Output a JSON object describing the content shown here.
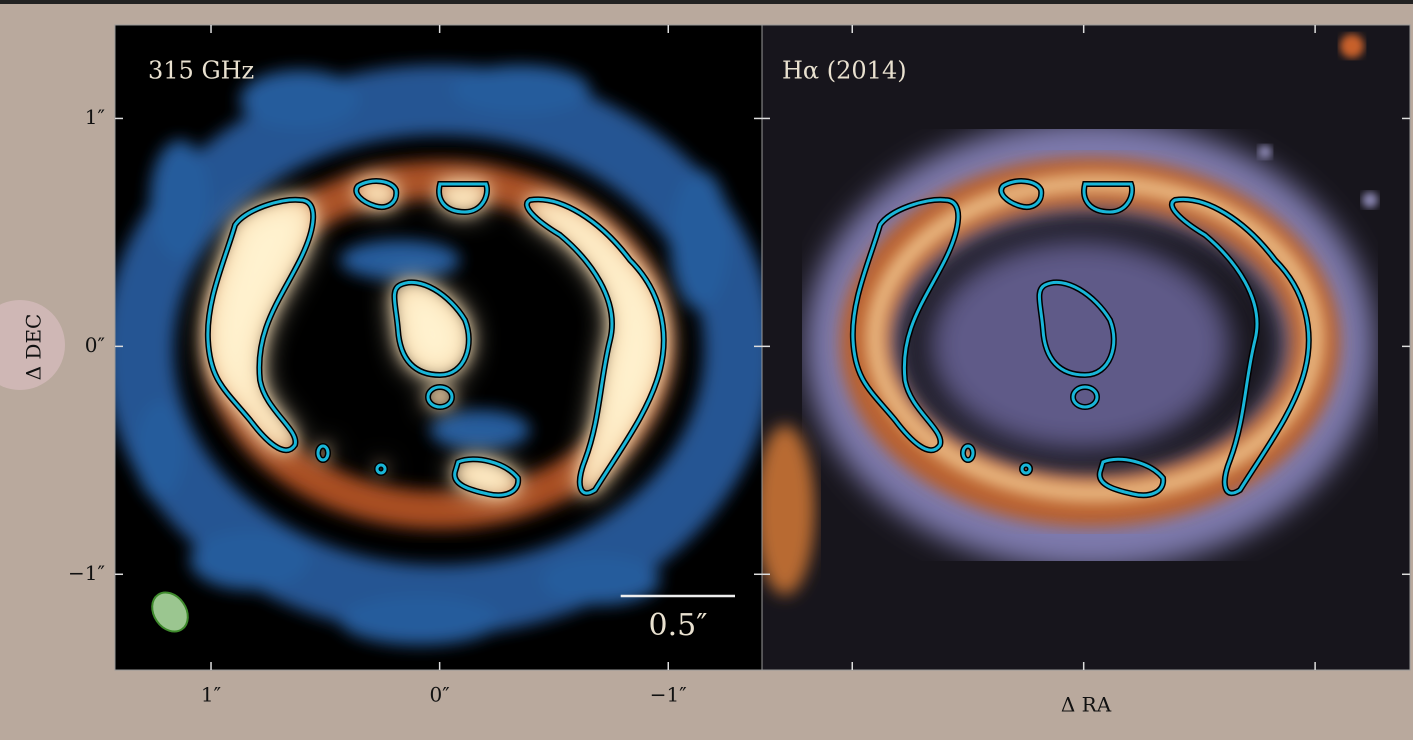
{
  "chart_data": [
    {
      "type": "image",
      "label": "315 GHz",
      "xlim": [
        1.42,
        -1.41
      ],
      "ylim": [
        -1.42,
        1.41
      ],
      "xticks": [
        {
          "value": 1,
          "label": "1″"
        },
        {
          "value": 0,
          "label": "0″"
        },
        {
          "value": -1,
          "label": "−1″"
        }
      ],
      "yticks": [
        {
          "value": 1,
          "label": "1″"
        },
        {
          "value": 0,
          "label": "0″"
        },
        {
          "value": -1,
          "label": "−1″"
        }
      ],
      "ylabel": "Δ DEC",
      "scale_bar": {
        "length": 0.5,
        "label": "0.5″"
      }
    },
    {
      "type": "image",
      "label": "Hα (2014)",
      "xlim": [
        1.39,
        -1.41
      ],
      "ylim": [
        -1.42,
        1.41
      ],
      "xticks": [
        1,
        0,
        -1
      ],
      "yticks": [
        1,
        0,
        -1
      ],
      "xlabel": "Δ RA"
    }
  ]
}
